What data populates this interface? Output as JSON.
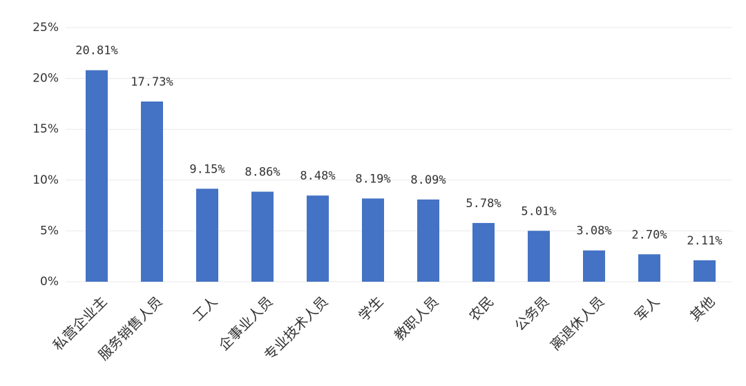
{
  "chart_data": {
    "type": "bar",
    "categories": [
      "私营企业主",
      "服务销售人员",
      "工人",
      "企事业人员",
      "专业技术人员",
      "学生",
      "教职人员",
      "农民",
      "公务员",
      "离退休人员",
      "军人",
      "其他"
    ],
    "values": [
      20.81,
      17.73,
      9.15,
      8.86,
      8.48,
      8.19,
      8.09,
      5.78,
      5.01,
      3.08,
      2.7,
      2.11
    ],
    "value_labels": [
      "20.81%",
      "17.73%",
      "9.15%",
      "8.86%",
      "8.48%",
      "8.19%",
      "8.09%",
      "5.78%",
      "5.01%",
      "3.08%",
      "2.70%",
      "2.11%"
    ],
    "color": "#4472c4",
    "ylim": [
      0,
      25
    ],
    "yticks": [
      {
        "value": 0,
        "label": "0%"
      },
      {
        "value": 5,
        "label": "5%"
      },
      {
        "value": 10,
        "label": "10%"
      },
      {
        "value": 15,
        "label": "15%"
      },
      {
        "value": 20,
        "label": "20%"
      },
      {
        "value": 25,
        "label": "25%"
      }
    ],
    "grid": true
  }
}
